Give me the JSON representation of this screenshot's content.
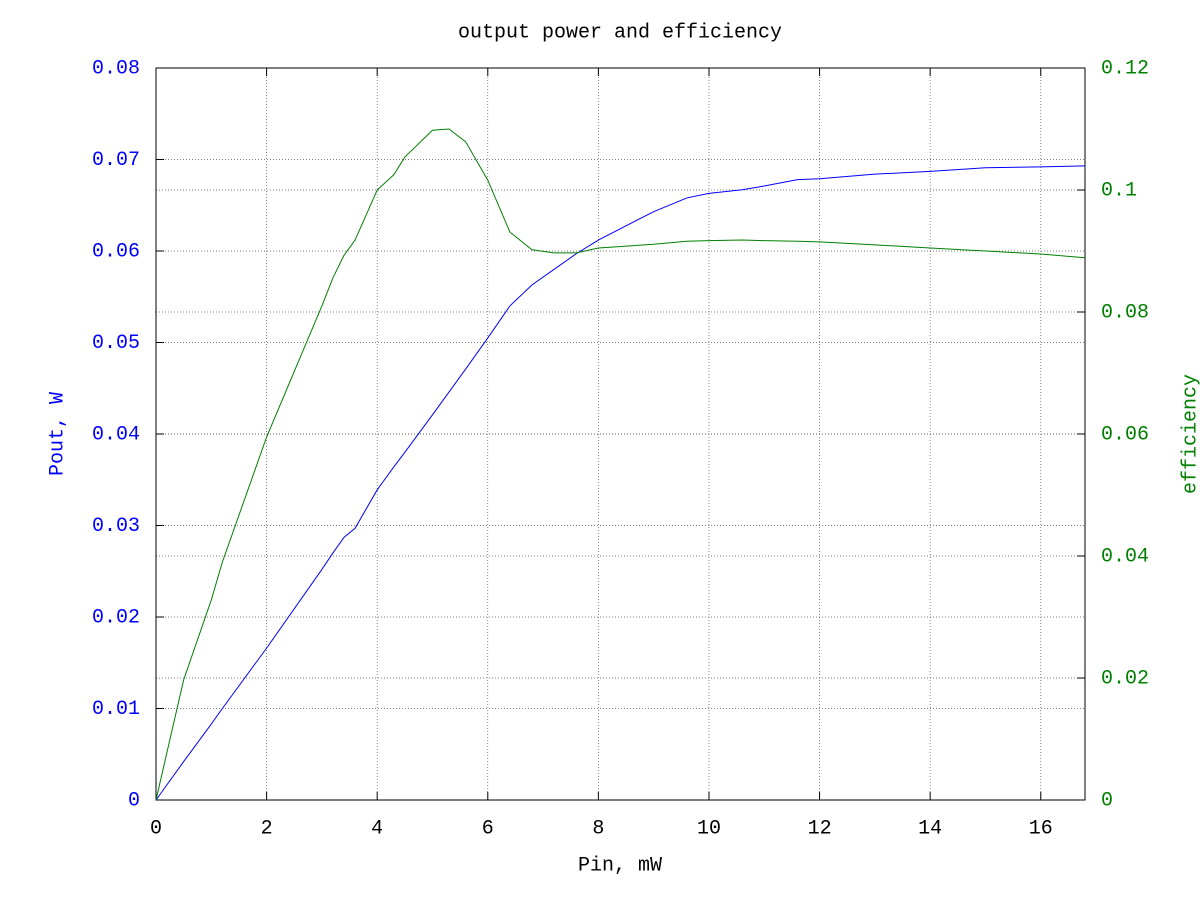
{
  "chart_data": {
    "type": "line",
    "title": "output power and efficiency",
    "xlabel": "Pin, mW",
    "ylabel": "Pout, W",
    "y2label": "efficiency",
    "x": [
      0,
      0.5,
      1,
      1.2,
      2,
      3,
      3.2,
      3.4,
      3.6,
      4,
      4.3,
      4.5,
      5,
      5.3,
      5.6,
      6,
      6.4,
      6.8,
      7.2,
      7.6,
      8,
      9,
      9.6,
      10,
      10.6,
      11,
      11.6,
      12,
      13,
      14,
      15,
      16,
      16.8
    ],
    "series": [
      {
        "name": "Pout",
        "color": "#0000ff",
        "axis": "y",
        "values": [
          0,
          0.0042,
          0.0083,
          0.01,
          0.0166,
          0.0252,
          0.027,
          0.0287,
          0.0297,
          0.0339,
          0.0364,
          0.038,
          0.0421,
          0.0446,
          0.0471,
          0.0505,
          0.054,
          0.0563,
          0.058,
          0.0597,
          0.0612,
          0.0643,
          0.0658,
          0.0663,
          0.0667,
          0.0671,
          0.0678,
          0.0679,
          0.0684,
          0.0687,
          0.0691,
          0.0692,
          0.0693
        ]
      },
      {
        "name": "efficiency",
        "color": "#008000",
        "axis": "y2",
        "values": [
          0,
          0.0197,
          0.0328,
          0.039,
          0.0595,
          0.081,
          0.0856,
          0.0893,
          0.0918,
          0.1,
          0.1025,
          0.1054,
          0.1098,
          0.11,
          0.1079,
          0.1016,
          0.0931,
          0.0902,
          0.0897,
          0.0897,
          0.0905,
          0.0911,
          0.0916,
          0.0917,
          0.0918,
          0.0917,
          0.0916,
          0.0915,
          0.091,
          0.0905,
          0.09,
          0.0895,
          0.0889
        ]
      }
    ],
    "xlim": [
      0,
      16.8
    ],
    "xticks": [
      0,
      2,
      4,
      6,
      8,
      10,
      12,
      14,
      16
    ],
    "ylim": [
      0,
      0.08
    ],
    "yticks": [
      0,
      0.01,
      0.02,
      0.03,
      0.04,
      0.05,
      0.06,
      0.07,
      0.08
    ],
    "y2lim": [
      0,
      0.12
    ],
    "y2ticks": [
      0,
      0.02,
      0.04,
      0.06,
      0.08,
      0.1,
      0.12
    ],
    "grid": true
  }
}
